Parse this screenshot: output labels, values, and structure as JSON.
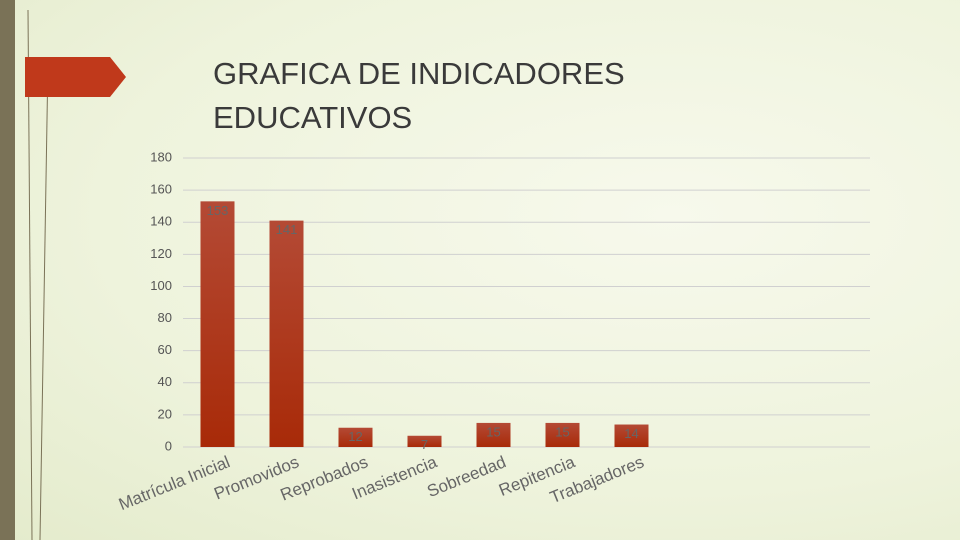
{
  "chart_data": {
    "type": "bar",
    "title": "GRAFICA DE INDICADORES EDUCATIVOS",
    "categories": [
      "Matrícula Inicial",
      "Promovidos",
      "Reprobados",
      "Inasistencia",
      "Sobreedad",
      "Repitencia",
      "Trabajadores"
    ],
    "values": [
      153,
      141,
      12,
      7,
      15,
      15,
      14
    ],
    "color": "#a92d0c",
    "ylim": [
      0,
      180
    ],
    "yticks": [
      0,
      20,
      40,
      60,
      80,
      100,
      120,
      140,
      160,
      180
    ],
    "grid": true
  }
}
